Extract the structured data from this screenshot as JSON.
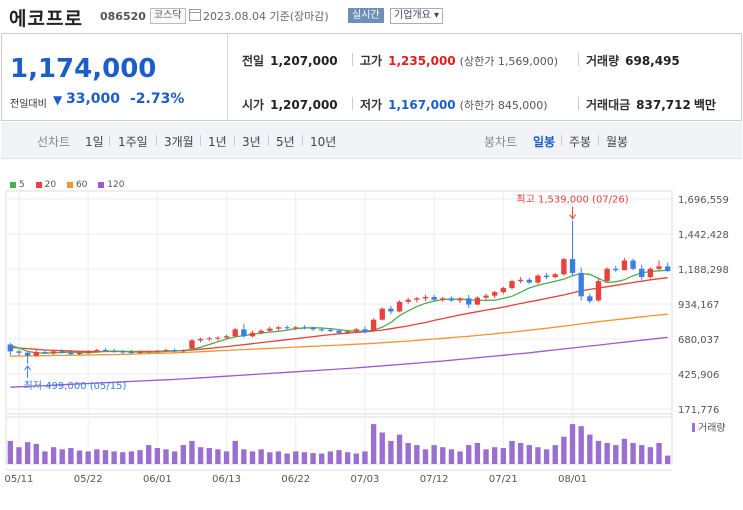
{
  "header": {
    "stock_name": "에코프로",
    "stock_code": "086520",
    "market": "코스닥",
    "date_text": "2023.08.04 기준(장마감)",
    "realtime_label": "실시간",
    "company_info_label": "기업개요 ▾"
  },
  "quote": {
    "current_price": "1,174,000",
    "change_label": "전일대비",
    "change_arrow": "▼",
    "change_value": "33,000",
    "change_pct": "-2.73%",
    "prev_close_label": "전일",
    "prev_close": "1,207,000",
    "high_label": "고가",
    "high": "1,235,000",
    "upper_limit_text": "(상한가 1,569,000)",
    "volume_label": "거래량",
    "volume": "698,495",
    "open_label": "시가",
    "open": "1,207,000",
    "low_label": "저가",
    "low": "1,167,000",
    "lower_limit_text": "(하한가 845,000)",
    "amount_label": "거래대금",
    "amount": "837,712",
    "amount_unit": "백만"
  },
  "toolbar": {
    "line_chart": "선차트",
    "periods": [
      "1일",
      "1주일",
      "3개월",
      "1년",
      "3년",
      "5년",
      "10년"
    ],
    "candle_chart": "봉차트",
    "candles": [
      "일봉",
      "주봉",
      "월봉"
    ],
    "active_candle": "일봉"
  },
  "colors": {
    "up": "#e8413e",
    "down": "#3a7fe0",
    "ma5": "#4caf50",
    "ma20": "#e8413e",
    "ma60": "#f39433",
    "ma120": "#9b59d6",
    "volume": "#9b6fd0"
  },
  "chart_data": {
    "type": "candlestick",
    "legend": [
      "5",
      "20",
      "60",
      "120"
    ],
    "y_ticks": [
      "1,696,559",
      "1,442,428",
      "1,188,298",
      "934,167",
      "680,037",
      "425,906",
      "171,776"
    ],
    "y_tick_values": [
      1696559,
      1442428,
      1188298,
      934167,
      680037,
      425906,
      171776
    ],
    "x_ticks": [
      "05/11",
      "05/22",
      "06/01",
      "06/13",
      "06/22",
      "07/03",
      "07/12",
      "07/21",
      "08/01"
    ],
    "high_note": "최고 1,539,000 (07/26)",
    "low_note": "최저 499,000 (05/15)",
    "volume_label": "거래량",
    "candles": [
      {
        "o": 640000,
        "h": 650000,
        "l": 560000,
        "c": 590000
      },
      {
        "o": 590000,
        "h": 605000,
        "l": 560000,
        "c": 580000
      },
      {
        "o": 580000,
        "h": 590000,
        "l": 499000,
        "c": 560000
      },
      {
        "o": 560000,
        "h": 600000,
        "l": 550000,
        "c": 585000
      },
      {
        "o": 585000,
        "h": 600000,
        "l": 570000,
        "c": 575000
      },
      {
        "o": 575000,
        "h": 595000,
        "l": 565000,
        "c": 590000
      },
      {
        "o": 590000,
        "h": 605000,
        "l": 575000,
        "c": 580000
      },
      {
        "o": 580000,
        "h": 600000,
        "l": 565000,
        "c": 570000
      },
      {
        "o": 570000,
        "h": 585000,
        "l": 560000,
        "c": 580000
      },
      {
        "o": 580000,
        "h": 600000,
        "l": 570000,
        "c": 590000
      },
      {
        "o": 590000,
        "h": 610000,
        "l": 580000,
        "c": 600000
      },
      {
        "o": 600000,
        "h": 615000,
        "l": 585000,
        "c": 595000
      },
      {
        "o": 595000,
        "h": 610000,
        "l": 580000,
        "c": 590000
      },
      {
        "o": 590000,
        "h": 600000,
        "l": 570000,
        "c": 585000
      },
      {
        "o": 585000,
        "h": 600000,
        "l": 575000,
        "c": 580000
      },
      {
        "o": 580000,
        "h": 595000,
        "l": 570000,
        "c": 585000
      },
      {
        "o": 585000,
        "h": 595000,
        "l": 575000,
        "c": 590000
      },
      {
        "o": 590000,
        "h": 600000,
        "l": 580000,
        "c": 595000
      },
      {
        "o": 595000,
        "h": 610000,
        "l": 585000,
        "c": 600000
      },
      {
        "o": 600000,
        "h": 610000,
        "l": 585000,
        "c": 590000
      },
      {
        "o": 590000,
        "h": 605000,
        "l": 580000,
        "c": 600000
      },
      {
        "o": 610000,
        "h": 680000,
        "l": 605000,
        "c": 670000
      },
      {
        "o": 670000,
        "h": 690000,
        "l": 655000,
        "c": 680000
      },
      {
        "o": 680000,
        "h": 695000,
        "l": 665000,
        "c": 685000
      },
      {
        "o": 685000,
        "h": 700000,
        "l": 670000,
        "c": 690000
      },
      {
        "o": 690000,
        "h": 710000,
        "l": 680000,
        "c": 700000
      },
      {
        "o": 700000,
        "h": 760000,
        "l": 695000,
        "c": 750000
      },
      {
        "o": 750000,
        "h": 790000,
        "l": 690000,
        "c": 700000
      },
      {
        "o": 700000,
        "h": 740000,
        "l": 690000,
        "c": 725000
      },
      {
        "o": 725000,
        "h": 750000,
        "l": 715000,
        "c": 740000
      },
      {
        "o": 740000,
        "h": 770000,
        "l": 730000,
        "c": 755000
      },
      {
        "o": 755000,
        "h": 775000,
        "l": 740000,
        "c": 765000
      },
      {
        "o": 765000,
        "h": 780000,
        "l": 750000,
        "c": 760000
      },
      {
        "o": 760000,
        "h": 775000,
        "l": 745000,
        "c": 765000
      },
      {
        "o": 765000,
        "h": 780000,
        "l": 750000,
        "c": 760000
      },
      {
        "o": 760000,
        "h": 770000,
        "l": 740000,
        "c": 750000
      },
      {
        "o": 750000,
        "h": 765000,
        "l": 735000,
        "c": 745000
      },
      {
        "o": 745000,
        "h": 760000,
        "l": 730000,
        "c": 740000
      },
      {
        "o": 740000,
        "h": 750000,
        "l": 715000,
        "c": 725000
      },
      {
        "o": 725000,
        "h": 745000,
        "l": 715000,
        "c": 735000
      },
      {
        "o": 735000,
        "h": 760000,
        "l": 725000,
        "c": 750000
      },
      {
        "o": 750000,
        "h": 770000,
        "l": 720000,
        "c": 730000
      },
      {
        "o": 740000,
        "h": 830000,
        "l": 735000,
        "c": 820000
      },
      {
        "o": 820000,
        "h": 910000,
        "l": 815000,
        "c": 900000
      },
      {
        "o": 900000,
        "h": 920000,
        "l": 860000,
        "c": 880000
      },
      {
        "o": 880000,
        "h": 960000,
        "l": 875000,
        "c": 950000
      },
      {
        "o": 950000,
        "h": 980000,
        "l": 935000,
        "c": 965000
      },
      {
        "o": 965000,
        "h": 985000,
        "l": 945000,
        "c": 975000
      },
      {
        "o": 975000,
        "h": 1000000,
        "l": 955000,
        "c": 985000
      },
      {
        "o": 985000,
        "h": 1000000,
        "l": 955000,
        "c": 965000
      },
      {
        "o": 965000,
        "h": 985000,
        "l": 950000,
        "c": 975000
      },
      {
        "o": 975000,
        "h": 990000,
        "l": 950000,
        "c": 960000
      },
      {
        "o": 960000,
        "h": 985000,
        "l": 940000,
        "c": 975000
      },
      {
        "o": 975000,
        "h": 1000000,
        "l": 905000,
        "c": 930000
      },
      {
        "o": 930000,
        "h": 990000,
        "l": 925000,
        "c": 980000
      },
      {
        "o": 980000,
        "h": 1010000,
        "l": 965000,
        "c": 995000
      },
      {
        "o": 995000,
        "h": 1030000,
        "l": 975000,
        "c": 1020000
      },
      {
        "o": 1020000,
        "h": 1060000,
        "l": 1005000,
        "c": 1050000
      },
      {
        "o": 1050000,
        "h": 1110000,
        "l": 1040000,
        "c": 1100000
      },
      {
        "o": 1100000,
        "h": 1130000,
        "l": 1085000,
        "c": 1110000
      },
      {
        "o": 1110000,
        "h": 1125000,
        "l": 1080000,
        "c": 1090000
      },
      {
        "o": 1090000,
        "h": 1150000,
        "l": 1080000,
        "c": 1140000
      },
      {
        "o": 1140000,
        "h": 1160000,
        "l": 1115000,
        "c": 1130000
      },
      {
        "o": 1130000,
        "h": 1160000,
        "l": 1120000,
        "c": 1150000
      },
      {
        "o": 1150000,
        "h": 1270000,
        "l": 1140000,
        "c": 1260000
      },
      {
        "o": 1260000,
        "h": 1539000,
        "l": 1135000,
        "c": 1160000
      },
      {
        "o": 1160000,
        "h": 1200000,
        "l": 960000,
        "c": 990000
      },
      {
        "o": 990000,
        "h": 1010000,
        "l": 940000,
        "c": 955000
      },
      {
        "o": 960000,
        "h": 1120000,
        "l": 950000,
        "c": 1100000
      },
      {
        "o": 1100000,
        "h": 1200000,
        "l": 1090000,
        "c": 1190000
      },
      {
        "o": 1190000,
        "h": 1210000,
        "l": 1165000,
        "c": 1180000
      },
      {
        "o": 1180000,
        "h": 1270000,
        "l": 1180000,
        "c": 1250000
      },
      {
        "o": 1250000,
        "h": 1265000,
        "l": 1180000,
        "c": 1190000
      },
      {
        "o": 1190000,
        "h": 1220000,
        "l": 1110000,
        "c": 1130000
      },
      {
        "o": 1130000,
        "h": 1200000,
        "l": 1120000,
        "c": 1190000
      },
      {
        "o": 1190000,
        "h": 1250000,
        "l": 1180000,
        "c": 1207000
      },
      {
        "o": 1207000,
        "h": 1235000,
        "l": 1167000,
        "c": 1174000
      }
    ],
    "volumes": [
      0.55,
      0.4,
      0.52,
      0.48,
      0.3,
      0.4,
      0.35,
      0.38,
      0.32,
      0.3,
      0.35,
      0.33,
      0.3,
      0.28,
      0.3,
      0.33,
      0.45,
      0.38,
      0.35,
      0.3,
      0.45,
      0.55,
      0.4,
      0.38,
      0.35,
      0.3,
      0.55,
      0.35,
      0.3,
      0.35,
      0.28,
      0.3,
      0.25,
      0.3,
      0.28,
      0.26,
      0.25,
      0.3,
      0.33,
      0.28,
      0.25,
      0.3,
      0.95,
      0.75,
      0.55,
      0.7,
      0.5,
      0.45,
      0.35,
      0.45,
      0.4,
      0.35,
      0.3,
      0.45,
      0.5,
      0.35,
      0.4,
      0.38,
      0.55,
      0.5,
      0.45,
      0.4,
      0.35,
      0.45,
      0.65,
      0.95,
      0.9,
      0.7,
      0.55,
      0.5,
      0.45,
      0.6,
      0.5,
      0.45,
      0.4,
      0.5,
      0.2
    ],
    "ma5": [
      635000,
      615000,
      590000,
      580000,
      578000,
      580000,
      582000,
      585000,
      582000,
      580000,
      585000,
      590000,
      592000,
      590000,
      588000,
      585000,
      585000,
      587000,
      590000,
      593000,
      595000,
      605000,
      620000,
      640000,
      660000,
      680000,
      695000,
      705000,
      715000,
      723000,
      730000,
      735000,
      745000,
      755000,
      760000,
      762000,
      760000,
      755000,
      748000,
      740000,
      737000,
      737000,
      745000,
      765000,
      800000,
      850000,
      885000,
      915000,
      940000,
      955000,
      967000,
      970000,
      970000,
      965000,
      960000,
      960000,
      962000,
      975000,
      990000,
      1020000,
      1050000,
      1070000,
      1085000,
      1100000,
      1115000,
      1140000,
      1155000,
      1150000,
      1120000,
      1090000,
      1095000,
      1110000,
      1140000,
      1160000,
      1170000,
      1175000,
      1178000
    ],
    "ma20": [
      620000,
      615000,
      610000,
      605000,
      600000,
      597000,
      595000,
      593000,
      591000,
      590000,
      589000,
      589000,
      589000,
      589000,
      589000,
      590000,
      590000,
      591000,
      592000,
      594000,
      596000,
      600000,
      606000,
      612000,
      618000,
      625000,
      632000,
      639000,
      646000,
      654000,
      661000,
      668000,
      675000,
      682000,
      690000,
      697000,
      705000,
      712000,
      718000,
      723000,
      728000,
      732000,
      738000,
      745000,
      755000,
      765000,
      775000,
      788000,
      800000,
      815000,
      828000,
      842000,
      855000,
      867000,
      878000,
      890000,
      900000,
      912000,
      925000,
      938000,
      950000,
      962000,
      975000,
      987000,
      1000000,
      1015000,
      1030000,
      1040000,
      1050000,
      1060000,
      1070000,
      1080000,
      1090000,
      1100000,
      1110000,
      1118000,
      1125000
    ],
    "ma60": [
      555000,
      556000,
      557000,
      558000,
      559000,
      560000,
      561000,
      562000,
      563000,
      564000,
      565000,
      566000,
      567000,
      568000,
      570000,
      572000,
      574000,
      576000,
      578000,
      580000,
      582000,
      585000,
      588000,
      591000,
      594000,
      597000,
      600000,
      603000,
      606000,
      609000,
      612000,
      615000,
      618000,
      621000,
      624000,
      627000,
      630000,
      633000,
      636000,
      639000,
      642000,
      645000,
      649000,
      653000,
      657000,
      661000,
      665000,
      670000,
      675000,
      680000,
      685000,
      690000,
      695000,
      700000,
      706000,
      712000,
      718000,
      724000,
      730000,
      737000,
      744000,
      751000,
      758000,
      766000,
      774000,
      782000,
      790000,
      798000,
      806000,
      813000,
      820000,
      827000,
      834000,
      841000,
      848000,
      854000,
      860000
    ],
    "ma120": [
      330000,
      333000,
      336000,
      339000,
      342000,
      345000,
      348000,
      351000,
      354000,
      357000,
      360000,
      363000,
      366000,
      369000,
      372000,
      375000,
      378000,
      381000,
      384000,
      387000,
      390000,
      394000,
      398000,
      402000,
      406000,
      410000,
      414000,
      418000,
      422000,
      426000,
      430000,
      434000,
      438000,
      442000,
      446000,
      450000,
      454000,
      458000,
      462000,
      466000,
      470000,
      475000,
      480000,
      485000,
      490000,
      495000,
      500000,
      505000,
      510000,
      515000,
      520000,
      526000,
      532000,
      538000,
      544000,
      550000,
      556000,
      562000,
      568000,
      574000,
      580000,
      587000,
      594000,
      601000,
      608000,
      615000,
      622000,
      629000,
      636000,
      643000,
      650000,
      657000,
      664000,
      671000,
      678000,
      685000,
      692000
    ]
  }
}
